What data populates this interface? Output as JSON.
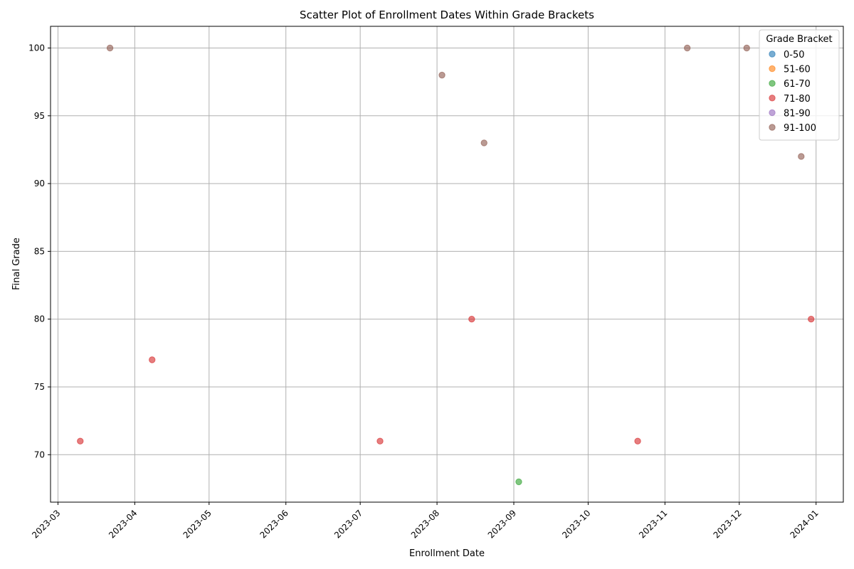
{
  "chart_data": {
    "type": "scatter",
    "title": "Scatter Plot of Enrollment Dates Within Grade Brackets",
    "xlabel": "Enrollment Date",
    "ylabel": "Final Grade",
    "x_axis_type": "date",
    "xlim": [
      "2023-02-26",
      "2024-01-12"
    ],
    "ylim": [
      66.5,
      101.6
    ],
    "x_ticks": [
      "2023-03",
      "2023-04",
      "2023-05",
      "2023-06",
      "2023-07",
      "2023-08",
      "2023-09",
      "2023-10",
      "2023-11",
      "2023-12",
      "2024-01"
    ],
    "y_ticks": [
      70,
      75,
      80,
      85,
      90,
      95,
      100
    ],
    "grid": true,
    "legend": {
      "title": "Grade Bracket",
      "placement": "top-right"
    },
    "series": [
      {
        "name": "0-50",
        "color": "#1f77b4",
        "points": []
      },
      {
        "name": "51-60",
        "color": "#ff7f0e",
        "points": []
      },
      {
        "name": "61-70",
        "color": "#2ca02c",
        "points": [
          {
            "x": "2023-09-03",
            "y": 68
          }
        ]
      },
      {
        "name": "71-80",
        "color": "#d62728",
        "points": [
          {
            "x": "2023-03-10",
            "y": 71
          },
          {
            "x": "2023-04-08",
            "y": 77
          },
          {
            "x": "2023-07-09",
            "y": 71
          },
          {
            "x": "2023-08-15",
            "y": 80
          },
          {
            "x": "2023-10-21",
            "y": 71
          },
          {
            "x": "2023-12-30",
            "y": 80
          }
        ]
      },
      {
        "name": "81-90",
        "color": "#9467bd",
        "points": []
      },
      {
        "name": "91-100",
        "color": "#8c564b",
        "points": [
          {
            "x": "2023-03-22",
            "y": 100
          },
          {
            "x": "2023-08-03",
            "y": 98
          },
          {
            "x": "2023-08-20",
            "y": 93
          },
          {
            "x": "2023-11-10",
            "y": 100
          },
          {
            "x": "2023-12-04",
            "y": 100
          },
          {
            "x": "2023-12-26",
            "y": 92
          }
        ]
      }
    ]
  }
}
